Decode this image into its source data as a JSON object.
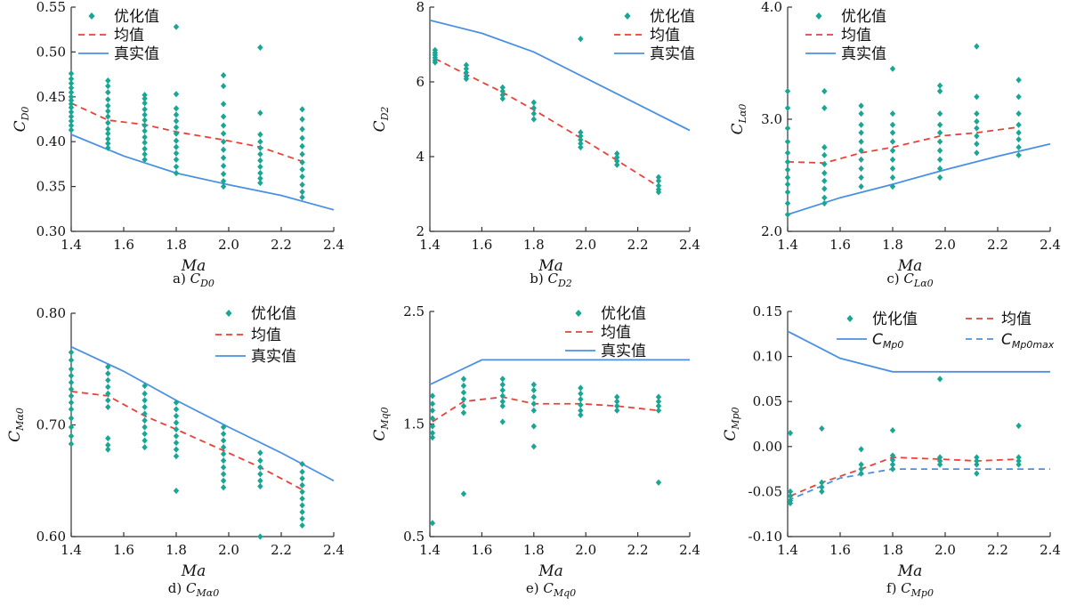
{
  "chart_data": [
    {
      "type": "scatter",
      "caption": {
        "prefix": "a)",
        "sym": "C",
        "sub": "D0"
      },
      "ylabel": {
        "sym": "C",
        "sub": "D0"
      },
      "xlabel": "Ma",
      "xlim": [
        1.4,
        2.4
      ],
      "ylim": [
        0.3,
        0.55
      ],
      "xticks": [
        "1.4",
        "1.6",
        "1.8",
        "2.0",
        "2.2",
        "2.4"
      ],
      "yticks": [
        "0.30",
        "0.35",
        "0.40",
        "0.45",
        "0.50",
        "0.55"
      ],
      "legend": {
        "placement": "top-left",
        "entries": [
          {
            "kind": "opt",
            "label": "优化值"
          },
          {
            "kind": "mean",
            "label": "均值"
          },
          {
            "kind": "true",
            "label": "真实值"
          }
        ]
      },
      "optimized_points": [
        {
          "x": 1.4,
          "y": [
            0.476,
            0.47,
            0.465,
            0.46,
            0.455,
            0.45,
            0.446,
            0.442,
            0.438,
            0.433,
            0.428,
            0.423,
            0.418,
            0.413
          ]
        },
        {
          "x": 1.54,
          "y": [
            0.468,
            0.462,
            0.455,
            0.447,
            0.44,
            0.434,
            0.428,
            0.421,
            0.414,
            0.409,
            0.403,
            0.398,
            0.393
          ]
        },
        {
          "x": 1.68,
          "y": [
            0.452,
            0.448,
            0.443,
            0.436,
            0.43,
            0.424,
            0.418,
            0.412,
            0.405,
            0.399,
            0.392,
            0.386,
            0.38
          ]
        },
        {
          "x": 1.8,
          "y": [
            0.528,
            0.453,
            0.437,
            0.43,
            0.423,
            0.416,
            0.409,
            0.401,
            0.394,
            0.387,
            0.38,
            0.372,
            0.365
          ]
        },
        {
          "x": 1.98,
          "y": [
            0.474,
            0.462,
            0.442,
            0.428,
            0.418,
            0.409,
            0.4,
            0.391,
            0.382,
            0.373,
            0.364,
            0.356,
            0.35
          ]
        },
        {
          "x": 2.12,
          "y": [
            0.505,
            0.432,
            0.408,
            0.4,
            0.393,
            0.386,
            0.379,
            0.372,
            0.365,
            0.359,
            0.354
          ]
        },
        {
          "x": 2.28,
          "y": [
            0.436,
            0.425,
            0.414,
            0.404,
            0.395,
            0.386,
            0.377,
            0.369,
            0.361,
            0.352,
            0.344,
            0.338
          ]
        }
      ],
      "mean": {
        "x": [
          1.4,
          1.54,
          1.68,
          1.8,
          1.98,
          2.12,
          2.28
        ],
        "y": [
          0.443,
          0.424,
          0.419,
          0.411,
          0.402,
          0.394,
          0.378
        ]
      },
      "true": {
        "x": [
          1.4,
          1.6,
          1.8,
          2.0,
          2.2,
          2.4
        ],
        "y": [
          0.408,
          0.384,
          0.365,
          0.352,
          0.34,
          0.324
        ]
      }
    },
    {
      "type": "scatter",
      "caption": {
        "prefix": "b)",
        "sym": "C",
        "sub": "D2"
      },
      "ylabel": {
        "sym": "C",
        "sub": "D2"
      },
      "xlabel": "Ma",
      "xlim": [
        1.4,
        2.4
      ],
      "ylim": [
        2,
        8
      ],
      "xticks": [
        "1.4",
        "1.6",
        "1.8",
        "2.0",
        "2.2",
        "2.4"
      ],
      "yticks": [
        "2",
        "4",
        "6",
        "8"
      ],
      "legend": {
        "placement": "top-right",
        "entries": [
          {
            "kind": "opt",
            "label": "优化值"
          },
          {
            "kind": "mean",
            "label": "均值"
          },
          {
            "kind": "true",
            "label": "真实值"
          }
        ]
      },
      "optimized_points": [
        {
          "x": 1.42,
          "y": [
            6.85,
            6.78,
            6.72,
            6.65,
            6.58,
            6.52
          ]
        },
        {
          "x": 1.54,
          "y": [
            6.45,
            6.35,
            6.25,
            6.15,
            6.08
          ]
        },
        {
          "x": 1.68,
          "y": [
            5.85,
            5.75,
            5.65,
            5.55
          ]
        },
        {
          "x": 1.8,
          "y": [
            5.45,
            5.3,
            5.15,
            5.0
          ]
        },
        {
          "x": 1.98,
          "y": [
            7.15,
            4.65,
            4.55,
            4.45,
            4.35,
            4.25
          ]
        },
        {
          "x": 2.12,
          "y": [
            4.08,
            3.98,
            3.88,
            3.78
          ]
        },
        {
          "x": 2.28,
          "y": [
            3.45,
            3.35,
            3.22,
            3.12,
            3.05
          ]
        }
      ],
      "mean": {
        "x": [
          1.42,
          1.54,
          1.68,
          1.8,
          1.98,
          2.12,
          2.28
        ],
        "y": [
          6.62,
          6.2,
          5.72,
          5.25,
          4.5,
          3.9,
          3.2
        ]
      },
      "true": {
        "x": [
          1.4,
          1.6,
          1.8,
          2.0,
          2.2,
          2.4
        ],
        "y": [
          7.65,
          7.3,
          6.8,
          6.1,
          5.4,
          4.7
        ]
      }
    },
    {
      "type": "scatter",
      "caption": {
        "prefix": "c)",
        "sym": "C",
        "sub": "Lα0"
      },
      "ylabel": {
        "sym": "C",
        "sub": "Lα0"
      },
      "xlabel": "Ma",
      "xlim": [
        1.4,
        2.4
      ],
      "ylim": [
        2.0,
        4.0
      ],
      "xticks": [
        "1.4",
        "1.6",
        "1.8",
        "2.0",
        "2.2",
        "2.4"
      ],
      "yticks": [
        "2.0",
        "3.0",
        "4.0"
      ],
      "legend": {
        "placement": "top-left",
        "entries": [
          {
            "kind": "opt",
            "label": "优化值"
          },
          {
            "kind": "mean",
            "label": "均值"
          },
          {
            "kind": "true",
            "label": "真实值"
          }
        ]
      },
      "optimized_points": [
        {
          "x": 1.4,
          "y": [
            3.25,
            3.1,
            2.92,
            2.8,
            2.7,
            2.62,
            2.55,
            2.48,
            2.42,
            2.35,
            2.25,
            2.15
          ]
        },
        {
          "x": 1.54,
          "y": [
            3.25,
            3.1,
            2.75,
            2.68,
            2.6,
            2.52,
            2.45,
            2.38,
            2.3,
            2.25
          ]
        },
        {
          "x": 1.68,
          "y": [
            3.12,
            3.05,
            2.95,
            2.88,
            2.8,
            2.72,
            2.64,
            2.56,
            2.48,
            2.4
          ]
        },
        {
          "x": 1.8,
          "y": [
            3.45,
            3.05,
            2.95,
            2.88,
            2.8,
            2.72,
            2.64,
            2.56,
            2.48,
            2.4
          ]
        },
        {
          "x": 1.98,
          "y": [
            3.3,
            3.25,
            3.05,
            2.95,
            2.88,
            2.8,
            2.72,
            2.64,
            2.56,
            2.48
          ]
        },
        {
          "x": 2.12,
          "y": [
            3.65,
            3.2,
            3.05,
            2.98,
            2.92,
            2.85,
            2.78,
            2.7
          ]
        },
        {
          "x": 2.28,
          "y": [
            3.35,
            3.2,
            3.05,
            2.95,
            2.88,
            2.82,
            2.75,
            2.68
          ]
        }
      ],
      "mean": {
        "x": [
          1.4,
          1.54,
          1.68,
          1.8,
          1.98,
          2.12,
          2.28
        ],
        "y": [
          2.62,
          2.61,
          2.7,
          2.75,
          2.85,
          2.88,
          2.93
        ]
      },
      "true": {
        "x": [
          1.4,
          1.6,
          1.8,
          2.0,
          2.2,
          2.4
        ],
        "y": [
          2.15,
          2.3,
          2.42,
          2.55,
          2.67,
          2.78
        ]
      }
    },
    {
      "type": "scatter",
      "caption": {
        "prefix": "d)",
        "sym": "C",
        "sub": "Mα0"
      },
      "ylabel": {
        "sym": "C",
        "sub": "Mα0"
      },
      "xlabel": "Ma",
      "xlim": [
        1.4,
        2.4
      ],
      "ylim": [
        0.6,
        0.8
      ],
      "xticks": [
        "1.4",
        "1.6",
        "1.8",
        "2.0",
        "2.2",
        "2.4"
      ],
      "yticks": [
        "0.60",
        "0.70",
        "0.80"
      ],
      "legend": {
        "placement": "top-right",
        "entries": [
          {
            "kind": "opt",
            "label": "优化值"
          },
          {
            "kind": "mean",
            "label": "均值"
          },
          {
            "kind": "true",
            "label": "真实值"
          }
        ]
      },
      "optimized_points": [
        {
          "x": 1.4,
          "y": [
            0.765,
            0.758,
            0.75,
            0.744,
            0.738,
            0.732,
            0.726,
            0.72,
            0.714,
            0.706,
            0.698,
            0.69,
            0.683
          ]
        },
        {
          "x": 1.54,
          "y": [
            0.752,
            0.746,
            0.74,
            0.734,
            0.728,
            0.722,
            0.716,
            0.688,
            0.682,
            0.678
          ]
        },
        {
          "x": 1.68,
          "y": [
            0.735,
            0.728,
            0.722,
            0.716,
            0.71,
            0.704,
            0.698,
            0.692,
            0.686,
            0.68
          ]
        },
        {
          "x": 1.8,
          "y": [
            0.72,
            0.714,
            0.708,
            0.702,
            0.696,
            0.69,
            0.684,
            0.678,
            0.672,
            0.641
          ]
        },
        {
          "x": 1.98,
          "y": [
            0.698,
            0.692,
            0.686,
            0.68,
            0.674,
            0.668,
            0.662,
            0.656,
            0.65,
            0.644
          ]
        },
        {
          "x": 2.12,
          "y": [
            0.675,
            0.668,
            0.662,
            0.656,
            0.65,
            0.645,
            0.6
          ]
        },
        {
          "x": 2.28,
          "y": [
            0.665,
            0.658,
            0.652,
            0.646,
            0.64,
            0.634,
            0.628,
            0.622,
            0.616,
            0.61
          ]
        }
      ],
      "mean": {
        "x": [
          1.4,
          1.54,
          1.68,
          1.8,
          1.98,
          2.12,
          2.28
        ],
        "y": [
          0.73,
          0.726,
          0.708,
          0.696,
          0.677,
          0.662,
          0.642
        ]
      },
      "true": {
        "x": [
          1.4,
          1.6,
          1.8,
          2.0,
          2.2,
          2.4
        ],
        "y": [
          0.77,
          0.748,
          0.722,
          0.698,
          0.675,
          0.65
        ]
      }
    },
    {
      "type": "scatter",
      "caption": {
        "prefix": "e)",
        "sym": "C",
        "sub": "Mq0"
      },
      "ylabel": {
        "sym": "C",
        "sub": "Mq0"
      },
      "xlabel": "Ma",
      "xlim": [
        1.4,
        2.4
      ],
      "ylim": [
        0.5,
        2.5
      ],
      "xticks": [
        "1.4",
        "1.6",
        "1.8",
        "2.0",
        "2.2",
        "2.4"
      ],
      "yticks": [
        "0.5",
        "1.5",
        "2.5"
      ],
      "legend": {
        "placement": "top-right",
        "entries": [
          {
            "kind": "opt",
            "label": "优化值"
          },
          {
            "kind": "mean",
            "label": "均值"
          },
          {
            "kind": "true",
            "label": "真实值"
          }
        ]
      },
      "optimized_points": [
        {
          "x": 1.41,
          "y": [
            1.75,
            1.68,
            1.62,
            1.55,
            1.48,
            1.42,
            1.38,
            0.62
          ]
        },
        {
          "x": 1.53,
          "y": [
            1.9,
            1.84,
            1.78,
            1.72,
            1.66,
            1.6,
            0.88
          ]
        },
        {
          "x": 1.68,
          "y": [
            1.9,
            1.85,
            1.8,
            1.75,
            1.7,
            1.66,
            1.52
          ]
        },
        {
          "x": 1.8,
          "y": [
            1.85,
            1.8,
            1.74,
            1.68,
            1.62,
            1.48,
            1.3
          ]
        },
        {
          "x": 1.98,
          "y": [
            1.82,
            1.77,
            1.72,
            1.67,
            1.62,
            1.58
          ]
        },
        {
          "x": 2.12,
          "y": [
            1.74,
            1.7,
            1.66,
            1.62
          ]
        },
        {
          "x": 2.28,
          "y": [
            1.74,
            1.7,
            1.66,
            1.62,
            0.98
          ]
        }
      ],
      "mean": {
        "x": [
          1.41,
          1.53,
          1.68,
          1.8,
          1.98,
          2.12,
          2.28
        ],
        "y": [
          1.52,
          1.7,
          1.74,
          1.68,
          1.68,
          1.66,
          1.62
        ]
      },
      "true": {
        "x": [
          1.4,
          1.6,
          1.8,
          2.0,
          2.2,
          2.4
        ],
        "y": [
          1.85,
          2.07,
          2.07,
          2.07,
          2.07,
          2.07
        ]
      }
    },
    {
      "type": "scatter",
      "caption": {
        "prefix": "f)",
        "sym": "C",
        "sub": "Mp0"
      },
      "ylabel": {
        "sym": "C",
        "sub": "Mp0"
      },
      "xlabel": "Ma",
      "xlim": [
        1.4,
        2.4
      ],
      "ylim": [
        -0.1,
        0.15
      ],
      "xticks": [
        "1.4",
        "1.6",
        "1.8",
        "2.0",
        "2.2",
        "2.4"
      ],
      "yticks": [
        "-0.10",
        "-0.05",
        "0.00",
        "0.05",
        "0.10",
        "0.15"
      ],
      "legend": {
        "placement": "top",
        "entries": [
          {
            "kind": "opt",
            "label": "优化值"
          },
          {
            "kind": "mean",
            "label": "均值"
          },
          {
            "kind": "true",
            "label": "C",
            "sub": "Mp0"
          },
          {
            "kind": "max",
            "label": "C",
            "sub": "Mp0max"
          }
        ]
      },
      "optimized_points": [
        {
          "x": 1.41,
          "y": [
            0.015,
            -0.05,
            -0.055,
            -0.06,
            -0.063
          ]
        },
        {
          "x": 1.53,
          "y": [
            0.02,
            -0.04,
            -0.045,
            -0.05
          ]
        },
        {
          "x": 1.68,
          "y": [
            -0.003,
            -0.02,
            -0.025,
            -0.03
          ]
        },
        {
          "x": 1.8,
          "y": [
            0.018,
            -0.01,
            -0.015,
            -0.02,
            -0.025
          ]
        },
        {
          "x": 1.98,
          "y": [
            0.075,
            -0.012,
            -0.016,
            -0.02
          ]
        },
        {
          "x": 2.12,
          "y": [
            -0.012,
            -0.016,
            -0.02,
            -0.03
          ]
        },
        {
          "x": 2.28,
          "y": [
            0.023,
            -0.012,
            -0.016,
            -0.02
          ]
        }
      ],
      "mean": {
        "x": [
          1.41,
          1.53,
          1.68,
          1.8,
          1.98,
          2.12,
          2.28
        ],
        "y": [
          -0.055,
          -0.04,
          -0.025,
          -0.012,
          -0.014,
          -0.016,
          -0.014
        ]
      },
      "true": {
        "x": [
          1.4,
          1.6,
          1.8,
          2.0,
          2.2,
          2.4
        ],
        "y": [
          0.128,
          0.098,
          0.083,
          0.083,
          0.083,
          0.083
        ]
      },
      "max": {
        "x": [
          1.4,
          1.6,
          1.8,
          2.0,
          2.2,
          2.4
        ],
        "y": [
          -0.06,
          -0.035,
          -0.025,
          -0.025,
          -0.025,
          -0.025
        ]
      }
    }
  ],
  "colors": {
    "optimized": "#1aa694",
    "mean": "#e8413a",
    "true": "#4a90e2",
    "max": "#4a90e2",
    "axis": "#333333"
  }
}
